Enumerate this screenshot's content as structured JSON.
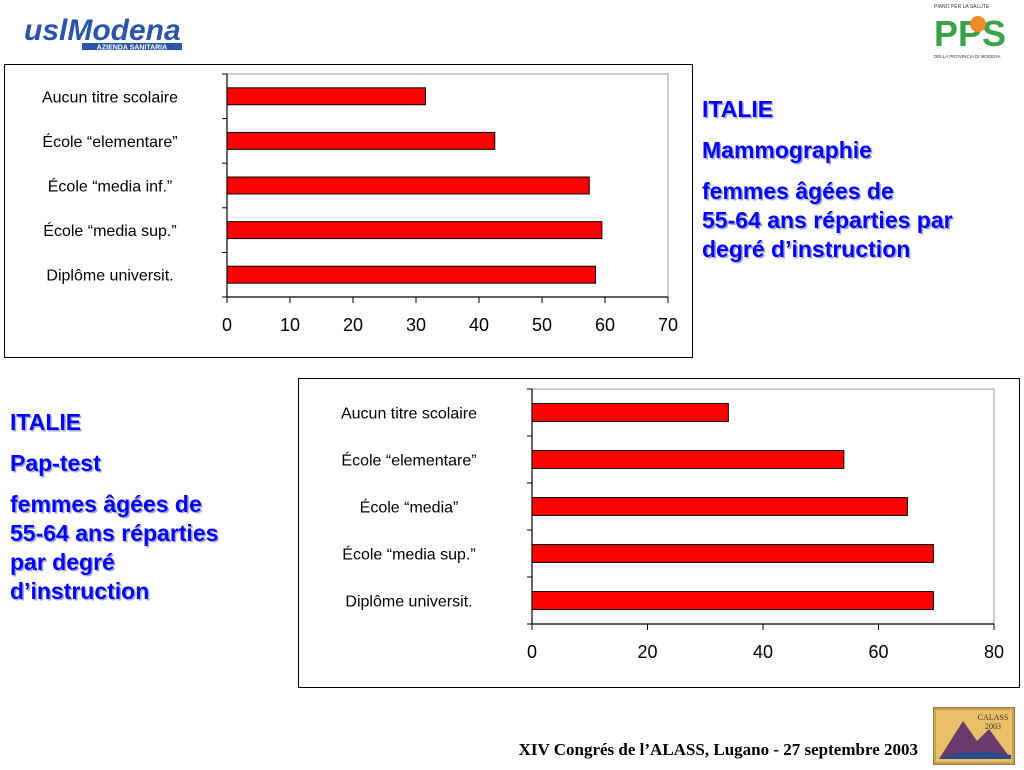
{
  "header": {
    "logo_left_text": "uslModena",
    "logo_left_sub": "AZIENDA SANITARIA",
    "logo_right_text": "PPS",
    "logo_right_top": "PIANO PER LA SALUTE",
    "logo_right_side": "DELLA PROVINCIA DI MODENA"
  },
  "chart_data": [
    {
      "type": "bar",
      "orientation": "horizontal",
      "categories": [
        "Aucun titre scolaire",
        "École “elementare”",
        "École “media inf.”",
        "École “media sup.”",
        "Diplôme universit."
      ],
      "values": [
        31.5,
        42.5,
        57.5,
        59.5,
        58.5
      ],
      "xlim": [
        0,
        70
      ],
      "xticks": [
        "0",
        "10",
        "20",
        "30",
        "40",
        "50",
        "60",
        "70"
      ],
      "bar_color": "#ff0000",
      "grid": false
    },
    {
      "type": "bar",
      "orientation": "horizontal",
      "categories": [
        "Aucun titre scolaire",
        "École “elementare”",
        "École “media”",
        "École “media sup.”",
        "Diplôme universit."
      ],
      "values": [
        34,
        54,
        65,
        69.5,
        69.5
      ],
      "xlim": [
        0,
        80
      ],
      "xticks": [
        "0",
        "20",
        "40",
        "60",
        "80"
      ],
      "bar_color": "#ff0000",
      "grid": false
    }
  ],
  "text1": {
    "line1": "ITALIE",
    "line2": "Mammographie",
    "line3": "femmes âgées de",
    "line4": "55-64 ans réparties par",
    "line5": "degré d’instruction"
  },
  "text2": {
    "line1": "ITALIE",
    "line2": "Pap-test",
    "line3": "femmes âgées de",
    "line4": "55-64 ans réparties",
    "line5": "par degré",
    "line6": "d’instruction"
  },
  "footer": {
    "text": "XIV Congrés de l’ALASS, Lugano - 27 septembre 2003",
    "calass_title": "CALASS",
    "calass_year": "2003"
  }
}
